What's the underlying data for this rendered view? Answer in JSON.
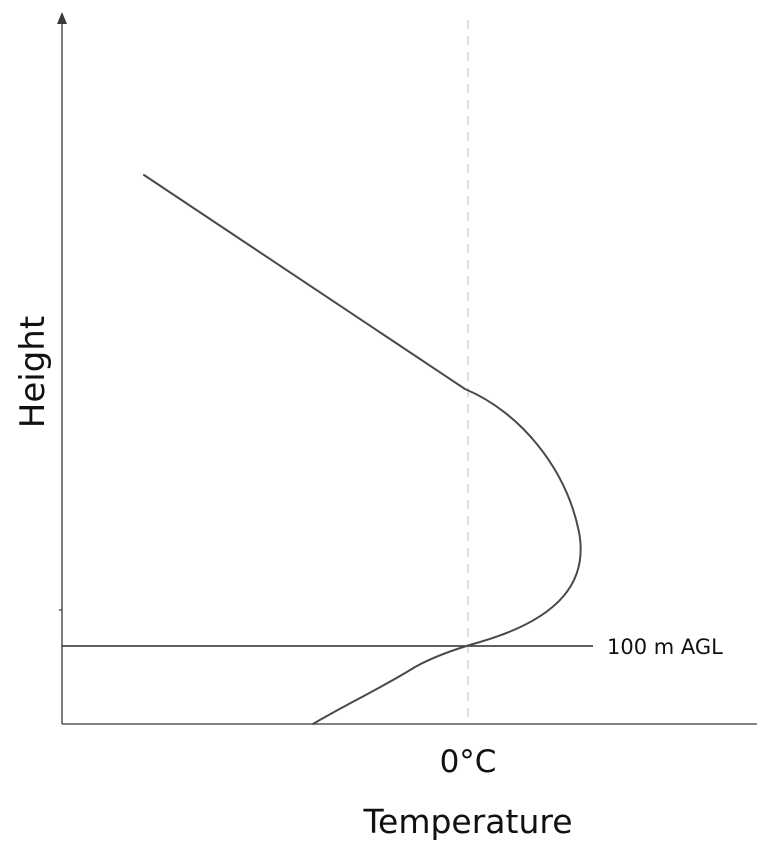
{
  "diagram": {
    "y_axis_label": "Height",
    "x_axis_label": "Temperature",
    "x_tick_label": "0°C",
    "reference_line_label": "100 m AGL"
  },
  "colors": {
    "profile_line": "#4a4a4a",
    "axis": "#3a3a3a",
    "zero_guide": "#d4d4d4",
    "text": "#111111"
  }
}
